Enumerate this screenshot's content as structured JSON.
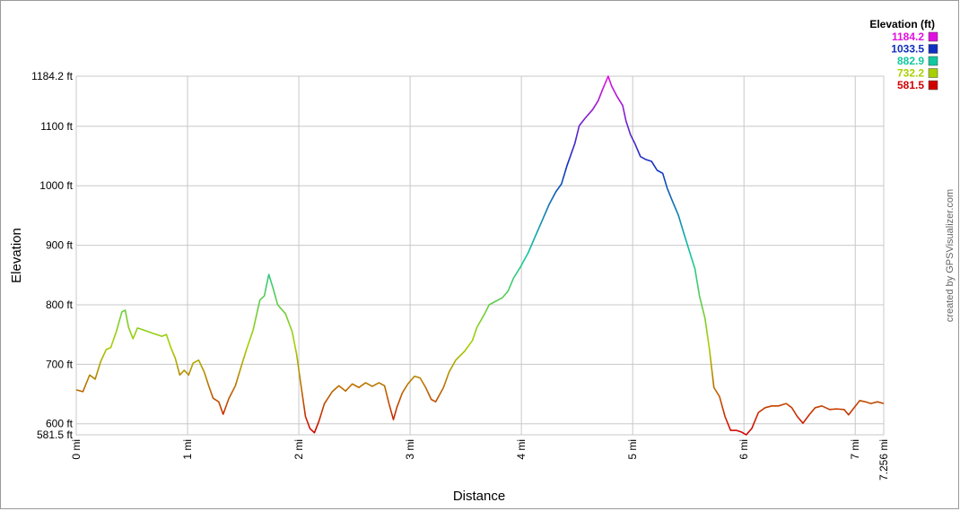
{
  "chart_data": {
    "type": "line",
    "x_label": "Distance",
    "y_label": "Elevation",
    "credit": "created by GPSVisualizer.com",
    "xlim": [
      0,
      7.256
    ],
    "ylim": [
      581.5,
      1184.2
    ],
    "xticks": [
      {
        "value": 0,
        "label": "0 mi"
      },
      {
        "value": 1,
        "label": "1 mi"
      },
      {
        "value": 2,
        "label": "2 mi"
      },
      {
        "value": 3,
        "label": "3 mi"
      },
      {
        "value": 4,
        "label": "4 mi"
      },
      {
        "value": 5,
        "label": "5 mi"
      },
      {
        "value": 6,
        "label": "6 mi"
      },
      {
        "value": 7,
        "label": "7 mi"
      },
      {
        "value": 7.256,
        "label": "7.256 mi"
      }
    ],
    "yticks": [
      {
        "value": 581.5,
        "label": "581.5 ft"
      },
      {
        "value": 600,
        "label": "600 ft"
      },
      {
        "value": 700,
        "label": "700 ft"
      },
      {
        "value": 800,
        "label": "800 ft"
      },
      {
        "value": 900,
        "label": "900 ft"
      },
      {
        "value": 1000,
        "label": "1000 ft"
      },
      {
        "value": 1100,
        "label": "1100 ft"
      },
      {
        "value": 1184.2,
        "label": "1184.2 ft"
      }
    ],
    "grid": true,
    "legend": {
      "title": "Elevation (ft)",
      "values": [
        1184.2,
        1033.5,
        882.9,
        732.2,
        581.5
      ],
      "colors": [
        "#e010e0",
        "#1030c0",
        "#10c8a0",
        "#a8d000",
        "#d00000"
      ]
    },
    "x": [
      0,
      0.06,
      0.12,
      0.17,
      0.22,
      0.27,
      0.31,
      0.36,
      0.41,
      0.44,
      0.47,
      0.51,
      0.55,
      0.6,
      0.69,
      0.77,
      0.81,
      0.85,
      0.89,
      0.93,
      0.97,
      1.01,
      1.05,
      1.1,
      1.15,
      1.19,
      1.23,
      1.28,
      1.32,
      1.37,
      1.43,
      1.48,
      1.53,
      1.59,
      1.65,
      1.69,
      1.73,
      1.77,
      1.81,
      1.88,
      1.94,
      1.98,
      2.02,
      2.06,
      2.1,
      2.14,
      2.18,
      2.23,
      2.3,
      2.36,
      2.42,
      2.48,
      2.54,
      2.6,
      2.66,
      2.72,
      2.77,
      2.81,
      2.85,
      2.88,
      2.93,
      2.98,
      3.04,
      3.09,
      3.14,
      3.19,
      3.23,
      3.3,
      3.35,
      3.41,
      3.49,
      3.56,
      3.6,
      3.67,
      3.71,
      3.77,
      3.83,
      3.88,
      3.93,
      3.99,
      4.06,
      4.12,
      4.19,
      4.25,
      4.31,
      4.36,
      4.41,
      4.48,
      4.52,
      4.57,
      4.64,
      4.69,
      4.73,
      4.78,
      4.81,
      4.86,
      4.91,
      4.94,
      4.98,
      5.02,
      5.07,
      5.12,
      5.17,
      5.22,
      5.27,
      5.31,
      5.36,
      5.41,
      5.46,
      5.51,
      5.56,
      5.6,
      5.65,
      5.69,
      5.73,
      5.78,
      5.83,
      5.88,
      5.93,
      5.98,
      6.02,
      6.07,
      6.13,
      6.19,
      6.25,
      6.31,
      6.38,
      6.43,
      6.48,
      6.53,
      6.59,
      6.64,
      6.7,
      6.77,
      6.83,
      6.9,
      6.94,
      6.99,
      7.04,
      7.09,
      7.14,
      7.2,
      7.256
    ],
    "values": [
      657,
      654,
      682,
      675,
      705,
      725,
      728,
      755,
      788,
      791,
      762,
      743,
      761,
      758,
      752,
      747,
      750,
      728,
      710,
      682,
      690,
      682,
      702,
      707,
      687,
      664,
      643,
      637,
      616,
      642,
      664,
      695,
      725,
      758,
      808,
      815,
      851,
      827,
      800,
      785,
      755,
      717,
      664,
      612,
      592,
      585,
      604,
      634,
      654,
      664,
      655,
      667,
      661,
      669,
      663,
      669,
      664,
      634,
      607,
      627,
      652,
      667,
      680,
      677,
      661,
      641,
      637,
      661,
      687,
      707,
      722,
      740,
      762,
      785,
      800,
      806,
      812,
      823,
      845,
      863,
      887,
      913,
      943,
      969,
      990,
      1003,
      1034,
      1071,
      1101,
      1113,
      1128,
      1143,
      1162,
      1184.2,
      1168,
      1150,
      1135,
      1109,
      1086,
      1071,
      1049,
      1044,
      1041,
      1026,
      1021,
      996,
      973,
      951,
      920,
      890,
      860,
      815,
      777,
      725,
      661,
      646,
      612,
      589,
      589,
      586,
      581.5,
      592,
      619,
      627,
      630,
      630,
      634,
      627,
      612,
      601,
      616,
      627,
      630,
      624,
      625,
      624,
      615,
      627,
      639,
      637,
      634,
      637,
      634
    ]
  }
}
